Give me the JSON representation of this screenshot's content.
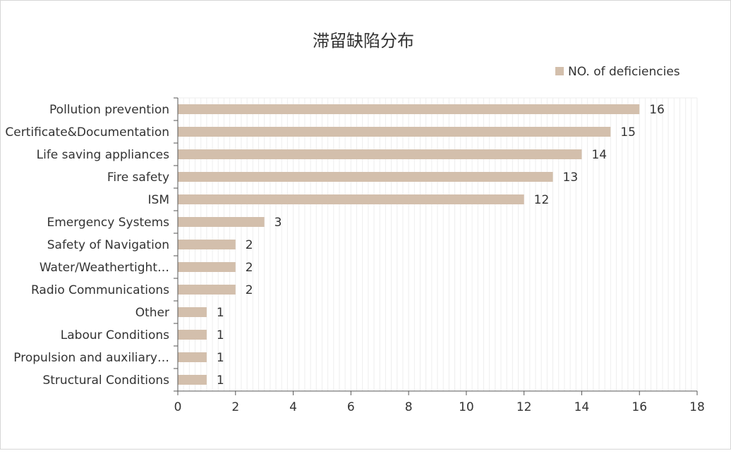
{
  "chart_data": {
    "type": "bar",
    "orientation": "horizontal",
    "title": "滞留缺陷分布",
    "categories": [
      "Pollution prevention",
      "Certificate&Documentation",
      "Life saving appliances",
      "Fire safety",
      "ISM",
      "Emergency Systems",
      "Safety of Navigation",
      "Water/Weathertight…",
      "Radio Communications",
      "Other",
      "Labour Conditions",
      "Propulsion and auxiliary…",
      "Structural Conditions"
    ],
    "series": [
      {
        "name": "NO. of deficiencies",
        "values": [
          16,
          15,
          14,
          13,
          12,
          3,
          2,
          2,
          2,
          1,
          1,
          1,
          1
        ]
      }
    ],
    "xlim": [
      0,
      18
    ],
    "xticks": [
      0,
      2,
      4,
      6,
      8,
      10,
      12,
      14,
      16,
      18
    ],
    "legend": "top-right",
    "grid": true,
    "colors": {
      "bar": "#d3bfac",
      "axis": "#555555",
      "grid": "#eeeeee"
    }
  }
}
